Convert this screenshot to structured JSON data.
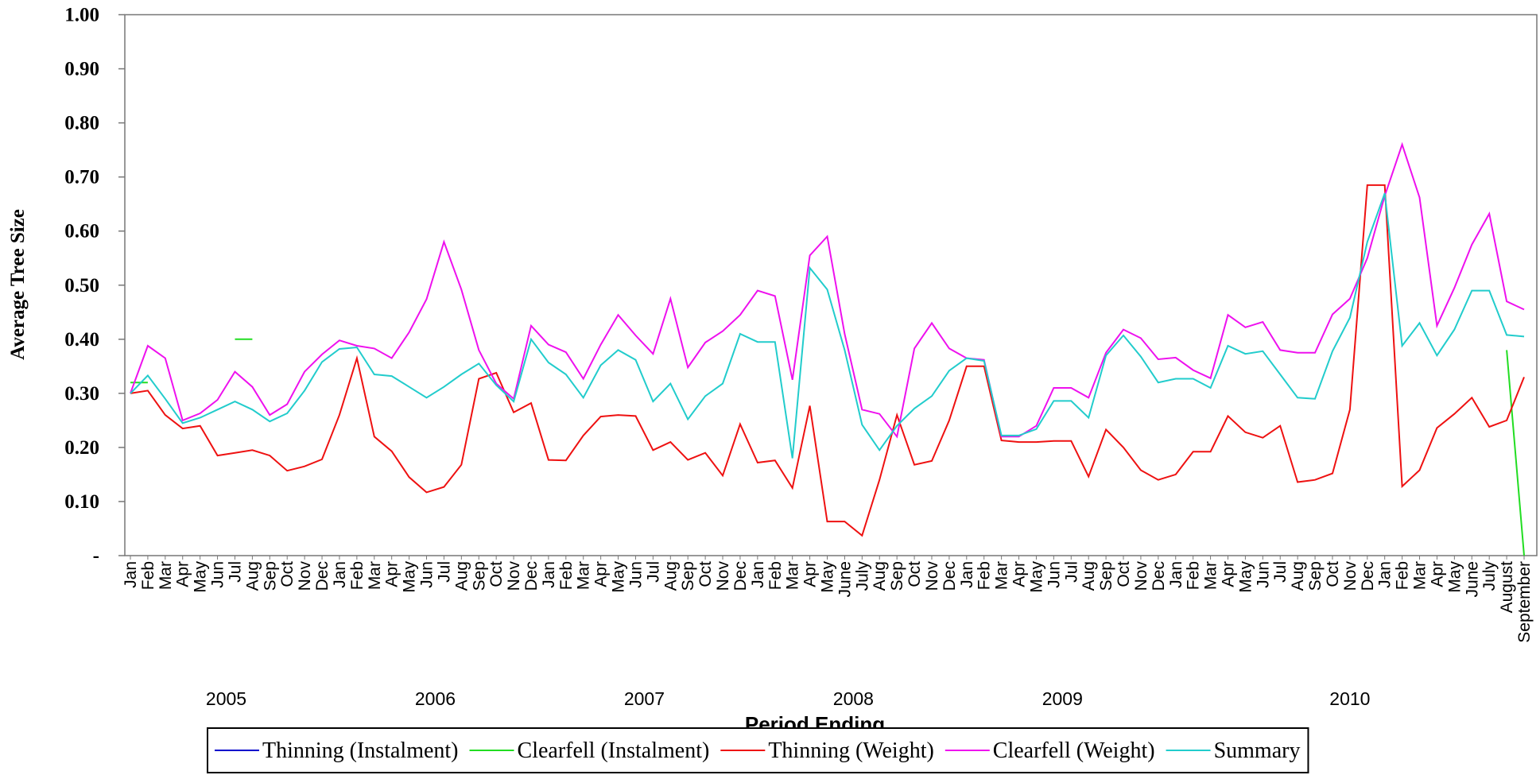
{
  "chart_data": {
    "type": "line",
    "y_label": "Average Tree Size",
    "x_label": "Period Ending",
    "categories": [
      "Jan",
      "Feb",
      "Mar",
      "Apr",
      "May",
      "Jun",
      "Jul",
      "Aug",
      "Sep",
      "Oct",
      "Nov",
      "Dec",
      "Jan",
      "Feb",
      "Mar",
      "Apr",
      "May",
      "Jun",
      "Jul",
      "Aug",
      "Sep",
      "Oct",
      "Nov",
      "Dec",
      "Jan",
      "Feb",
      "Mar",
      "Apr",
      "May",
      "Jun",
      "Jul",
      "Aug",
      "Sep",
      "Oct",
      "Nov",
      "Dec",
      "Jan",
      "Feb",
      "Mar",
      "Apr",
      "May",
      "June",
      "July",
      "Aug",
      "Sep",
      "Oct",
      "Nov",
      "Dec",
      "Jan",
      "Feb",
      "Mar",
      "Apr",
      "May",
      "Jun",
      "Jul",
      "Aug",
      "Sep",
      "Oct",
      "Nov",
      "Dec",
      "Jan",
      "Feb",
      "Mar",
      "Apr",
      "May",
      "Jun",
      "Jul",
      "Aug",
      "Sep",
      "Oct",
      "Nov",
      "Dec",
      "Jan",
      "Feb",
      "Mar",
      "Apr",
      "May",
      "June",
      "July",
      "August",
      "September"
    ],
    "category_years": [
      "2005",
      "2005",
      "2005",
      "2005",
      "2005",
      "2005",
      "2005",
      "2005",
      "2005",
      "2005",
      "2005",
      "2005",
      "2006",
      "2006",
      "2006",
      "2006",
      "2006",
      "2006",
      "2006",
      "2006",
      "2006",
      "2006",
      "2006",
      "2006",
      "2007",
      "2007",
      "2007",
      "2007",
      "2007",
      "2007",
      "2007",
      "2007",
      "2007",
      "2007",
      "2007",
      "2007",
      "2008",
      "2008",
      "2008",
      "2008",
      "2008",
      "2008",
      "2008",
      "2008",
      "2008",
      "2008",
      "2008",
      "2008",
      "2009",
      "2009",
      "2009",
      "2009",
      "2009",
      "2009",
      "2009",
      "2009",
      "2009",
      "2009",
      "2009",
      "2009",
      "2010",
      "2010",
      "2010",
      "2010",
      "2010",
      "2010",
      "2010",
      "2010",
      "2010",
      "2010",
      "2010",
      "2010",
      "2010",
      "2010",
      "2010",
      "2010",
      "2010",
      "2010",
      "2010",
      "2010",
      "2010"
    ],
    "series": [
      {
        "name": "Thinning (Instalment)",
        "color": "#0000cc",
        "values": [
          null,
          null,
          null,
          null,
          null,
          null,
          null,
          null,
          null,
          null,
          null,
          null,
          null,
          null,
          null,
          null,
          null,
          null,
          null,
          null,
          null,
          null,
          null,
          null,
          null,
          null,
          null,
          null,
          null,
          null,
          null,
          null,
          null,
          null,
          null,
          null,
          null,
          null,
          null,
          null,
          null,
          null,
          null,
          null,
          null,
          null,
          null,
          null,
          null,
          null,
          null,
          null,
          null,
          null,
          null,
          null,
          null,
          null,
          null,
          null,
          null,
          null,
          null,
          null,
          null,
          null,
          null,
          null,
          null,
          null,
          null,
          null,
          null,
          null,
          null,
          null,
          null,
          null,
          null,
          null,
          null
        ]
      },
      {
        "name": "Clearfell (Instalment)",
        "color": "#22dd22",
        "values": [
          0.32,
          0.32,
          null,
          null,
          null,
          null,
          0.4,
          0.4,
          null,
          null,
          null,
          null,
          null,
          null,
          null,
          null,
          null,
          null,
          null,
          null,
          null,
          null,
          null,
          null,
          null,
          null,
          null,
          null,
          null,
          null,
          null,
          null,
          null,
          null,
          null,
          null,
          null,
          null,
          null,
          null,
          null,
          null,
          null,
          null,
          null,
          null,
          null,
          null,
          null,
          null,
          null,
          null,
          null,
          null,
          null,
          null,
          null,
          null,
          null,
          null,
          null,
          null,
          null,
          null,
          null,
          null,
          null,
          null,
          null,
          null,
          null,
          null,
          null,
          null,
          null,
          null,
          null,
          null,
          null,
          0.38,
          0
        ]
      },
      {
        "name": "Thinning (Weight)",
        "color": "#ee1111",
        "values": [
          0.3,
          0.305,
          0.26,
          0.235,
          0.24,
          0.185,
          0.19,
          0.195,
          0.185,
          0.157,
          0.165,
          0.178,
          0.26,
          0.365,
          0.22,
          0.193,
          0.145,
          0.117,
          0.127,
          0.168,
          0.327,
          0.338,
          0.265,
          0.282,
          0.177,
          0.176,
          0.222,
          0.257,
          0.26,
          0.258,
          0.195,
          0.21,
          0.177,
          0.19,
          0.148,
          0.243,
          0.172,
          0.176,
          0.125,
          0.277,
          0.063,
          0.063,
          0.037,
          0.14,
          0.26,
          0.168,
          0.175,
          0.25,
          0.35,
          0.35,
          0.213,
          0.21,
          0.21,
          0.212,
          0.212,
          0.146,
          0.233,
          0.2,
          0.158,
          0.14,
          0.15,
          0.192,
          0.192,
          0.258,
          0.228,
          0.218,
          0.24,
          0.136,
          0.14,
          0.152,
          0.27,
          0.685,
          0.685,
          0.128,
          0.158,
          0.236,
          0.262,
          0.292,
          0.238,
          0.25,
          0.33
        ]
      },
      {
        "name": "Clearfell (Weight)",
        "color": "#ee11ee",
        "values": [
          0.3,
          0.388,
          0.365,
          0.25,
          0.263,
          0.288,
          0.34,
          0.312,
          0.26,
          0.28,
          0.34,
          0.372,
          0.398,
          0.388,
          0.383,
          0.365,
          0.413,
          0.474,
          0.58,
          0.492,
          0.38,
          0.318,
          0.29,
          0.425,
          0.39,
          0.376,
          0.327,
          0.39,
          0.445,
          0.407,
          0.373,
          0.475,
          0.348,
          0.394,
          0.415,
          0.445,
          0.49,
          0.48,
          0.325,
          0.555,
          0.59,
          0.41,
          0.27,
          0.262,
          0.22,
          0.383,
          0.43,
          0.383,
          0.365,
          0.362,
          0.22,
          0.22,
          0.24,
          0.31,
          0.31,
          0.292,
          0.375,
          0.418,
          0.402,
          0.363,
          0.366,
          0.343,
          0.328,
          0.445,
          0.422,
          0.432,
          0.38,
          0.375,
          0.375,
          0.446,
          0.475,
          0.55,
          0.665,
          0.76,
          0.662,
          0.425,
          0.495,
          0.575,
          0.632,
          0.47,
          0.455
        ]
      },
      {
        "name": "Summary",
        "color": "#22cccc",
        "values": [
          0.3,
          0.333,
          0.29,
          0.245,
          0.255,
          0.27,
          0.285,
          0.27,
          0.248,
          0.263,
          0.305,
          0.358,
          0.382,
          0.385,
          0.335,
          0.332,
          0.312,
          0.292,
          0.312,
          0.335,
          0.355,
          0.315,
          0.285,
          0.4,
          0.357,
          0.335,
          0.292,
          0.352,
          0.38,
          0.362,
          0.285,
          0.318,
          0.252,
          0.295,
          0.318,
          0.41,
          0.395,
          0.395,
          0.18,
          0.532,
          0.492,
          0.38,
          0.242,
          0.195,
          0.24,
          0.272,
          0.295,
          0.342,
          0.365,
          0.36,
          0.222,
          0.222,
          0.234,
          0.286,
          0.286,
          0.255,
          0.37,
          0.407,
          0.368,
          0.32,
          0.327,
          0.327,
          0.31,
          0.388,
          0.373,
          0.378,
          0.335,
          0.292,
          0.29,
          0.378,
          0.44,
          0.58,
          0.67,
          0.388,
          0.43,
          0.37,
          0.418,
          0.49,
          0.49,
          0.408,
          0.405
        ]
      }
    ],
    "ylim": [
      0,
      1
    ],
    "yticks": [
      {
        "value": 0,
        "label": "-"
      },
      {
        "value": 0.1,
        "label": "0.10"
      },
      {
        "value": 0.2,
        "label": "0.20"
      },
      {
        "value": 0.3,
        "label": "0.30"
      },
      {
        "value": 0.4,
        "label": "0.40"
      },
      {
        "value": 0.5,
        "label": "0.50"
      },
      {
        "value": 0.6,
        "label": "0.60"
      },
      {
        "value": 0.7,
        "label": "0.70"
      },
      {
        "value": 0.8,
        "label": "0.80"
      },
      {
        "value": 0.9,
        "label": "0.90"
      },
      {
        "value": 1,
        "label": "1.00"
      }
    ],
    "grid": false,
    "legend": "bottom"
  }
}
